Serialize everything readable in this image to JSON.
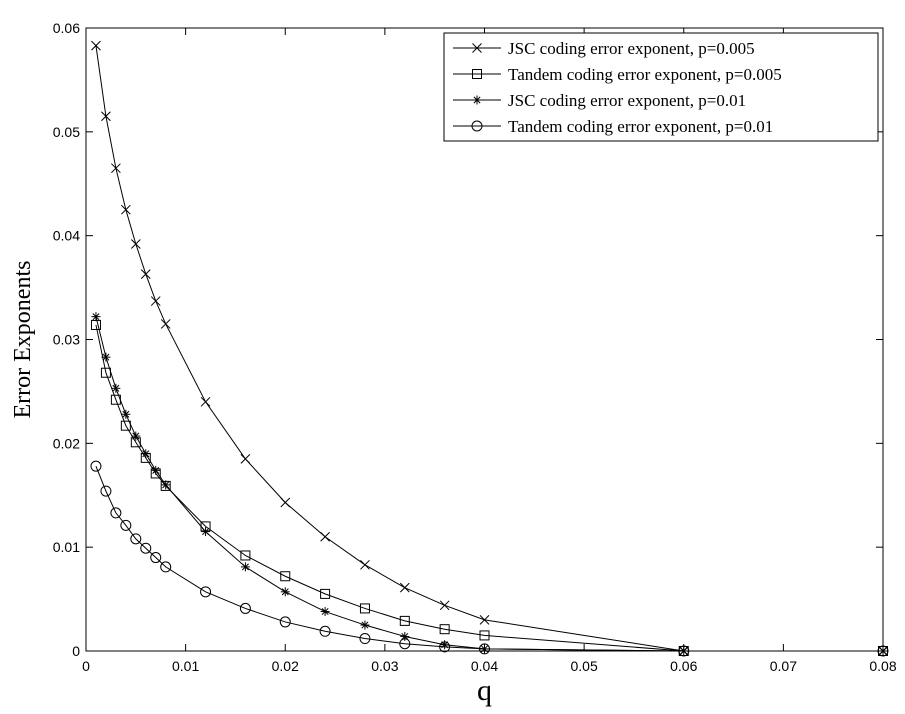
{
  "chart_data": {
    "type": "line",
    "title": "",
    "xlabel": "q",
    "ylabel": "Error Exponents",
    "xlim": [
      0,
      0.08
    ],
    "ylim": [
      0,
      0.06
    ],
    "xticks": [
      0,
      0.01,
      0.02,
      0.03,
      0.04,
      0.05,
      0.06,
      0.07,
      0.08
    ],
    "yticks": [
      0,
      0.01,
      0.02,
      0.03,
      0.04,
      0.05,
      0.06
    ],
    "xtick_labels": [
      "0",
      "0.01",
      "0.02",
      "0.03",
      "0.04",
      "0.05",
      "0.06",
      "0.07",
      "0.08"
    ],
    "ytick_labels": [
      "0",
      "0.01",
      "0.02",
      "0.03",
      "0.04",
      "0.05",
      "0.06"
    ],
    "grid": false,
    "legend_position": "top-right",
    "series": [
      {
        "name": "JSC coding error exponent, p=0.005",
        "marker": "x",
        "x": [
          0.001,
          0.002,
          0.003,
          0.004,
          0.005,
          0.006,
          0.007,
          0.008,
          0.012,
          0.016,
          0.02,
          0.024,
          0.028,
          0.032,
          0.036,
          0.04,
          0.06,
          0.08
        ],
        "y": [
          0.0583,
          0.0515,
          0.0465,
          0.0425,
          0.0392,
          0.0363,
          0.0337,
          0.0315,
          0.024,
          0.0185,
          0.0143,
          0.011,
          0.0083,
          0.0061,
          0.0044,
          0.003,
          0.0,
          0.0
        ]
      },
      {
        "name": "Tandem coding error exponent, p=0.005",
        "marker": "square",
        "x": [
          0.001,
          0.002,
          0.003,
          0.004,
          0.005,
          0.006,
          0.007,
          0.008,
          0.012,
          0.016,
          0.02,
          0.024,
          0.028,
          0.032,
          0.036,
          0.04,
          0.06,
          0.08
        ],
        "y": [
          0.0314,
          0.0268,
          0.0242,
          0.0217,
          0.0201,
          0.0186,
          0.0171,
          0.0159,
          0.012,
          0.0092,
          0.0072,
          0.0055,
          0.0041,
          0.0029,
          0.0021,
          0.0015,
          0.0,
          0.0
        ]
      },
      {
        "name": "JSC coding error exponent, p=0.01",
        "marker": "asterisk",
        "x": [
          0.001,
          0.002,
          0.003,
          0.004,
          0.005,
          0.006,
          0.007,
          0.008,
          0.012,
          0.016,
          0.02,
          0.024,
          0.028,
          0.032,
          0.036,
          0.04,
          0.06,
          0.08
        ],
        "y": [
          0.0322,
          0.0283,
          0.0253,
          0.0228,
          0.0207,
          0.019,
          0.0174,
          0.016,
          0.0115,
          0.0081,
          0.0057,
          0.0038,
          0.0025,
          0.0014,
          0.0006,
          0.0002,
          0.0,
          0.0
        ]
      },
      {
        "name": "Tandem coding error exponent, p=0.01",
        "marker": "circle",
        "x": [
          0.001,
          0.002,
          0.003,
          0.004,
          0.005,
          0.006,
          0.007,
          0.008,
          0.012,
          0.016,
          0.02,
          0.024,
          0.028,
          0.032,
          0.036,
          0.04,
          0.06,
          0.08
        ],
        "y": [
          0.0178,
          0.0154,
          0.0133,
          0.0121,
          0.0108,
          0.0099,
          0.009,
          0.0081,
          0.0057,
          0.0041,
          0.0028,
          0.0019,
          0.0012,
          0.0007,
          0.0004,
          0.0002,
          0.0,
          0.0
        ]
      }
    ]
  }
}
